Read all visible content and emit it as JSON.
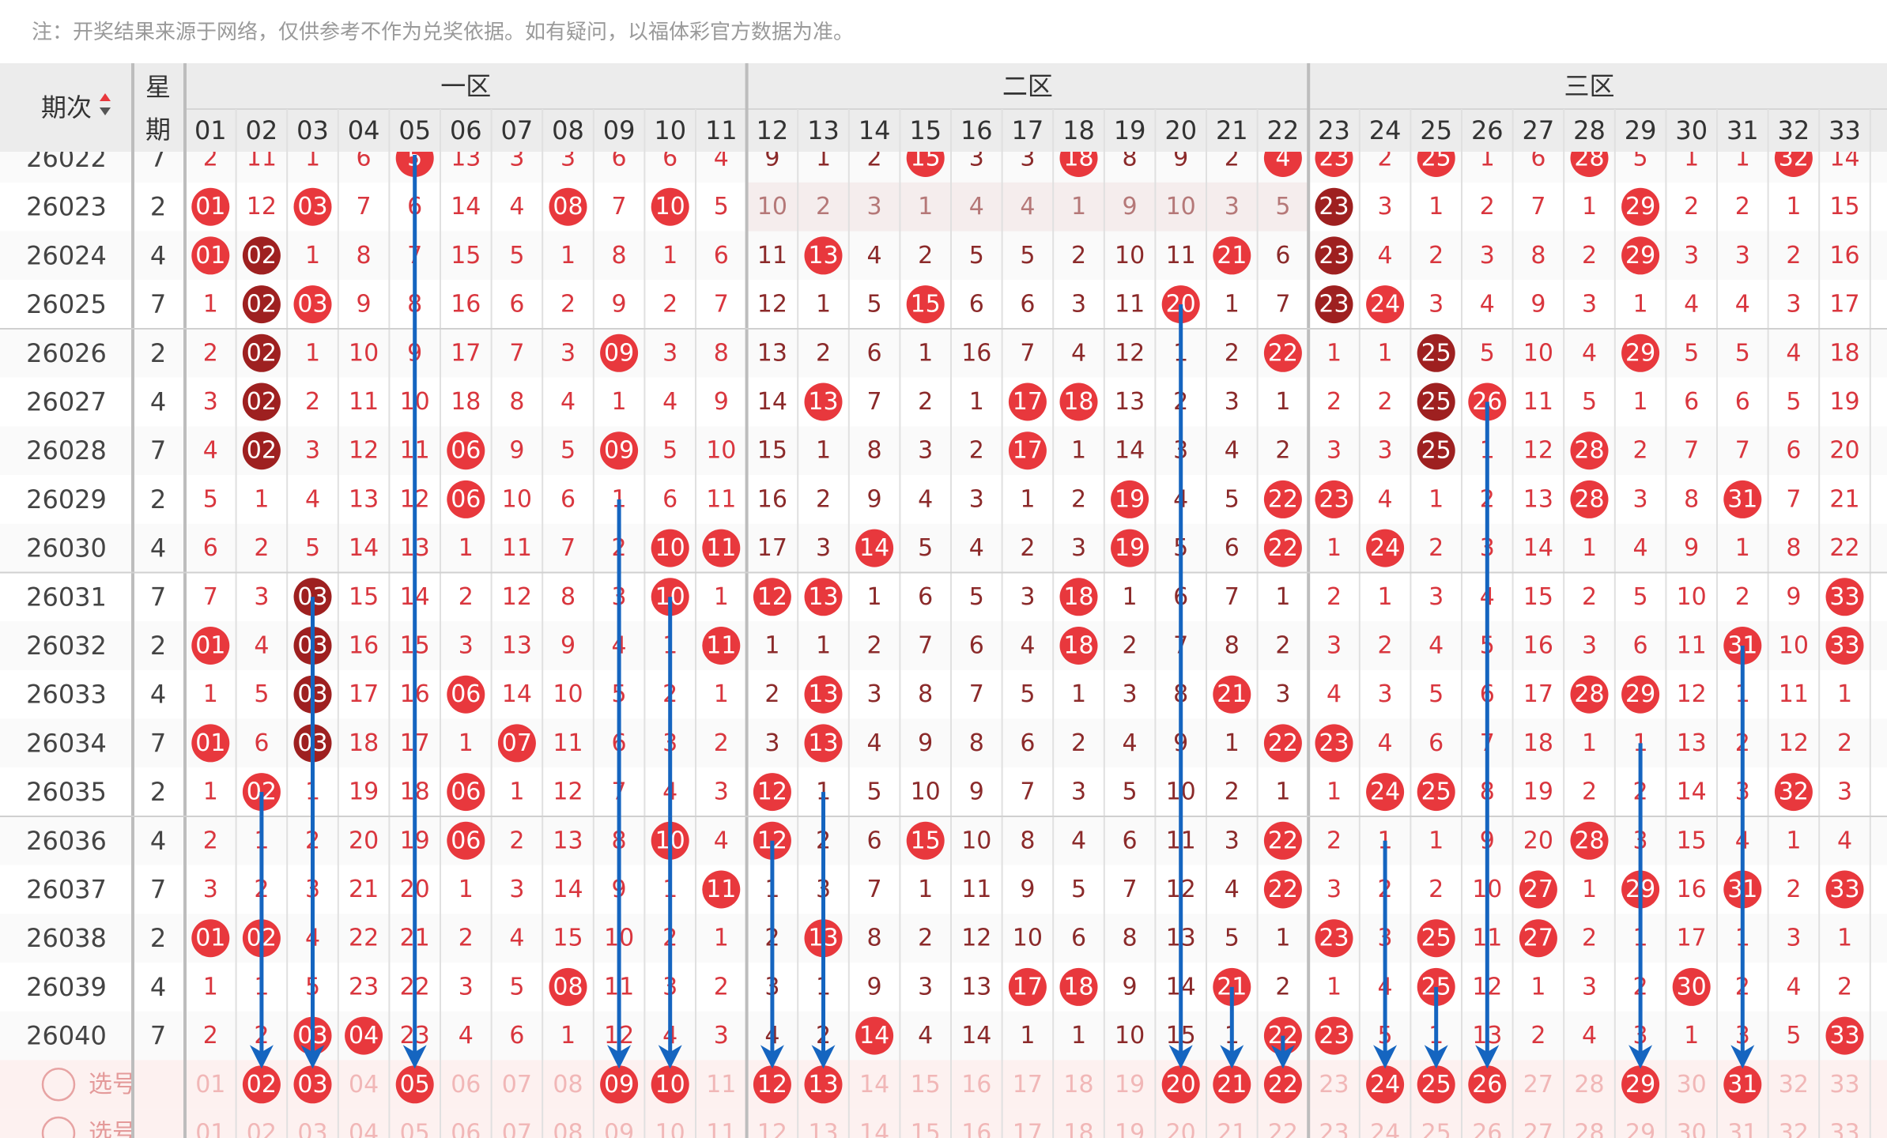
{
  "note": "注：开奖结果来源于网络，仅供参考不作为兑奖依据。如有疑问，以福体彩官方数据为准。",
  "header": {
    "period_label": "期次",
    "weekday_label": [
      "星",
      "期"
    ],
    "zones": [
      "一区",
      "二区",
      "三区"
    ],
    "columns": [
      "01",
      "02",
      "03",
      "04",
      "05",
      "06",
      "07",
      "08",
      "09",
      "10",
      "11",
      "12",
      "13",
      "14",
      "15",
      "16",
      "17",
      "18",
      "19",
      "20",
      "21",
      "22",
      "23",
      "24",
      "25",
      "26",
      "27",
      "28",
      "29",
      "30",
      "31",
      "32",
      "33"
    ]
  },
  "rows": [
    {
      "period": "26022",
      "weekday": "7",
      "cells": [
        "2",
        "11",
        "1",
        "6",
        "5",
        "13",
        "3",
        "3",
        "6",
        "6",
        "4",
        "9",
        "1",
        "2",
        "15",
        "3",
        "3",
        "18",
        "8",
        "9",
        "2",
        "4",
        "23",
        "2",
        "25",
        "1",
        "6",
        "28",
        "5",
        "1",
        "1",
        "32",
        "14"
      ]
    },
    {
      "period": "26023",
      "weekday": "2",
      "cells": [
        "01",
        "12",
        "03",
        "7",
        "6",
        "14",
        "4",
        "08",
        "7",
        "10",
        "5",
        "10",
        "2",
        "3",
        "1",
        "4",
        "4",
        "1",
        "9",
        "10",
        "3",
        "5",
        "23",
        "3",
        "1",
        "2",
        "7",
        "1",
        "29",
        "2",
        "2",
        "1",
        "15"
      ]
    },
    {
      "period": "26024",
      "weekday": "4",
      "cells": [
        "01",
        "02",
        "1",
        "8",
        "7",
        "15",
        "5",
        "1",
        "8",
        "1",
        "6",
        "11",
        "13",
        "4",
        "2",
        "5",
        "5",
        "2",
        "10",
        "11",
        "21",
        "6",
        "23",
        "4",
        "2",
        "3",
        "8",
        "2",
        "29",
        "3",
        "3",
        "2",
        "16"
      ]
    },
    {
      "period": "26025",
      "weekday": "7",
      "cells": [
        "1",
        "02",
        "03",
        "9",
        "8",
        "16",
        "6",
        "2",
        "9",
        "2",
        "7",
        "12",
        "1",
        "5",
        "15",
        "6",
        "6",
        "3",
        "11",
        "20",
        "1",
        "7",
        "23",
        "24",
        "3",
        "4",
        "9",
        "3",
        "1",
        "4",
        "4",
        "3",
        "17"
      ]
    },
    {
      "period": "26026",
      "weekday": "2",
      "cells": [
        "2",
        "02",
        "1",
        "10",
        "9",
        "17",
        "7",
        "3",
        "09",
        "3",
        "8",
        "13",
        "2",
        "6",
        "1",
        "16",
        "7",
        "4",
        "12",
        "1",
        "2",
        "22",
        "1",
        "1",
        "25",
        "5",
        "10",
        "4",
        "29",
        "5",
        "5",
        "4",
        "18"
      ]
    },
    {
      "period": "26027",
      "weekday": "4",
      "cells": [
        "3",
        "02",
        "2",
        "11",
        "10",
        "18",
        "8",
        "4",
        "1",
        "4",
        "9",
        "14",
        "13",
        "7",
        "2",
        "1",
        "17",
        "18",
        "13",
        "2",
        "3",
        "1",
        "2",
        "2",
        "25",
        "26",
        "11",
        "5",
        "1",
        "6",
        "6",
        "5",
        "19"
      ]
    },
    {
      "period": "26028",
      "weekday": "7",
      "cells": [
        "4",
        "02",
        "3",
        "12",
        "11",
        "06",
        "9",
        "5",
        "09",
        "5",
        "10",
        "15",
        "1",
        "8",
        "3",
        "2",
        "17",
        "1",
        "14",
        "3",
        "4",
        "2",
        "3",
        "3",
        "25",
        "1",
        "12",
        "28",
        "2",
        "7",
        "7",
        "6",
        "20"
      ]
    },
    {
      "period": "26029",
      "weekday": "2",
      "cells": [
        "5",
        "1",
        "4",
        "13",
        "12",
        "06",
        "10",
        "6",
        "1",
        "6",
        "11",
        "16",
        "2",
        "9",
        "4",
        "3",
        "1",
        "2",
        "19",
        "4",
        "5",
        "22",
        "23",
        "4",
        "1",
        "2",
        "13",
        "28",
        "3",
        "8",
        "31",
        "7",
        "21"
      ]
    },
    {
      "period": "26030",
      "weekday": "4",
      "cells": [
        "6",
        "2",
        "5",
        "14",
        "13",
        "1",
        "11",
        "7",
        "2",
        "10",
        "11",
        "17",
        "3",
        "14",
        "5",
        "4",
        "2",
        "3",
        "19",
        "5",
        "6",
        "22",
        "1",
        "24",
        "2",
        "3",
        "14",
        "1",
        "4",
        "9",
        "1",
        "8",
        "22"
      ]
    },
    {
      "period": "26031",
      "weekday": "7",
      "cells": [
        "7",
        "3",
        "03",
        "15",
        "14",
        "2",
        "12",
        "8",
        "3",
        "10",
        "1",
        "12",
        "13",
        "1",
        "6",
        "5",
        "3",
        "18",
        "1",
        "6",
        "7",
        "1",
        "2",
        "1",
        "3",
        "4",
        "15",
        "2",
        "5",
        "10",
        "2",
        "9",
        "33"
      ]
    },
    {
      "period": "26032",
      "weekday": "2",
      "cells": [
        "01",
        "4",
        "03",
        "16",
        "15",
        "3",
        "13",
        "9",
        "4",
        "1",
        "11",
        "1",
        "1",
        "2",
        "7",
        "6",
        "4",
        "18",
        "2",
        "7",
        "8",
        "2",
        "3",
        "2",
        "4",
        "5",
        "16",
        "3",
        "6",
        "11",
        "31",
        "10",
        "33"
      ]
    },
    {
      "period": "26033",
      "weekday": "4",
      "cells": [
        "1",
        "5",
        "03",
        "17",
        "16",
        "06",
        "14",
        "10",
        "5",
        "2",
        "1",
        "2",
        "13",
        "3",
        "8",
        "7",
        "5",
        "1",
        "3",
        "8",
        "21",
        "3",
        "4",
        "3",
        "5",
        "6",
        "17",
        "28",
        "29",
        "12",
        "1",
        "11",
        "1"
      ]
    },
    {
      "period": "26034",
      "weekday": "7",
      "cells": [
        "01",
        "6",
        "03",
        "18",
        "17",
        "1",
        "07",
        "11",
        "6",
        "3",
        "2",
        "3",
        "13",
        "4",
        "9",
        "8",
        "6",
        "2",
        "4",
        "9",
        "1",
        "22",
        "23",
        "4",
        "6",
        "7",
        "18",
        "1",
        "1",
        "13",
        "2",
        "12",
        "2"
      ]
    },
    {
      "period": "26035",
      "weekday": "2",
      "cells": [
        "1",
        "02",
        "1",
        "19",
        "18",
        "06",
        "1",
        "12",
        "7",
        "4",
        "3",
        "12",
        "1",
        "5",
        "10",
        "9",
        "7",
        "3",
        "5",
        "10",
        "2",
        "1",
        "1",
        "24",
        "25",
        "8",
        "19",
        "2",
        "2",
        "14",
        "3",
        "32",
        "3"
      ]
    },
    {
      "period": "26036",
      "weekday": "4",
      "cells": [
        "2",
        "1",
        "2",
        "20",
        "19",
        "06",
        "2",
        "13",
        "8",
        "10",
        "4",
        "12",
        "2",
        "6",
        "15",
        "10",
        "8",
        "4",
        "6",
        "11",
        "3",
        "22",
        "2",
        "1",
        "1",
        "9",
        "20",
        "28",
        "3",
        "15",
        "4",
        "1",
        "4"
      ]
    },
    {
      "period": "26037",
      "weekday": "7",
      "cells": [
        "3",
        "2",
        "3",
        "21",
        "20",
        "1",
        "3",
        "14",
        "9",
        "1",
        "11",
        "1",
        "3",
        "7",
        "1",
        "11",
        "9",
        "5",
        "7",
        "12",
        "4",
        "22",
        "3",
        "2",
        "2",
        "10",
        "27",
        "1",
        "29",
        "16",
        "31",
        "2",
        "33"
      ]
    },
    {
      "period": "26038",
      "weekday": "2",
      "cells": [
        "01",
        "02",
        "4",
        "22",
        "21",
        "2",
        "4",
        "15",
        "10",
        "2",
        "1",
        "2",
        "13",
        "8",
        "2",
        "12",
        "10",
        "6",
        "8",
        "13",
        "5",
        "1",
        "23",
        "3",
        "25",
        "11",
        "27",
        "2",
        "1",
        "17",
        "1",
        "3",
        "1"
      ]
    },
    {
      "period": "26039",
      "weekday": "4",
      "cells": [
        "1",
        "1",
        "5",
        "23",
        "22",
        "3",
        "5",
        "08",
        "11",
        "3",
        "2",
        "3",
        "1",
        "9",
        "3",
        "13",
        "17",
        "18",
        "9",
        "14",
        "21",
        "2",
        "1",
        "4",
        "25",
        "12",
        "1",
        "3",
        "2",
        "30",
        "2",
        "4",
        "2"
      ]
    },
    {
      "period": "26040",
      "weekday": "7",
      "cells": [
        "2",
        "2",
        "03",
        "04",
        "23",
        "4",
        "6",
        "1",
        "12",
        "4",
        "3",
        "4",
        "2",
        "14",
        "4",
        "14",
        "1",
        "1",
        "10",
        "15",
        "1",
        "22",
        "23",
        "5",
        "1",
        "13",
        "2",
        "4",
        "3",
        "1",
        "3",
        "5",
        "33"
      ]
    }
  ],
  "reds": [
    [
      4,
      14,
      17,
      21,
      22,
      24,
      27,
      31
    ],
    [
      0,
      2,
      7,
      9,
      22,
      28
    ],
    [
      0,
      1,
      12,
      20,
      22,
      28
    ],
    [
      1,
      2,
      14,
      19,
      22,
      23
    ],
    [
      1,
      8,
      21,
      24,
      28
    ],
    [
      1,
      12,
      16,
      17,
      24,
      25
    ],
    [
      1,
      5,
      8,
      16,
      24,
      27
    ],
    [
      5,
      18,
      21,
      22,
      27,
      30
    ],
    [
      9,
      10,
      13,
      18,
      21,
      23
    ],
    [
      2,
      9,
      11,
      12,
      17,
      32
    ],
    [
      0,
      2,
      10,
      17,
      30,
      32
    ],
    [
      2,
      5,
      12,
      20,
      27,
      28
    ],
    [
      0,
      2,
      6,
      12,
      21,
      22
    ],
    [
      1,
      5,
      11,
      23,
      24,
      31
    ],
    [
      5,
      9,
      11,
      14,
      21,
      27
    ],
    [
      10,
      21,
      26,
      28,
      30,
      32
    ],
    [
      0,
      1,
      12,
      22,
      24,
      26
    ],
    [
      7,
      16,
      17,
      20,
      24,
      29
    ],
    [
      2,
      3,
      13,
      21,
      22,
      32
    ]
  ],
  "streaks": [
    {
      "row": 2,
      "col": 1
    },
    {
      "row": 3,
      "col": 1
    },
    {
      "row": 4,
      "col": 1
    },
    {
      "row": 5,
      "col": 1
    },
    {
      "row": 6,
      "col": 1
    },
    {
      "row": 9,
      "col": 2
    },
    {
      "row": 10,
      "col": 2
    },
    {
      "row": 11,
      "col": 2
    },
    {
      "row": 12,
      "col": 2
    },
    {
      "row": 1,
      "col": 22
    },
    {
      "row": 2,
      "col": 22
    },
    {
      "row": 3,
      "col": 22
    },
    {
      "row": 4,
      "col": 24
    },
    {
      "row": 5,
      "col": 24
    },
    {
      "row": 6,
      "col": 24
    }
  ],
  "select_rows": [
    {
      "label": "选号",
      "picked": {
        "1": "02",
        "2": "03",
        "4": "05",
        "8": "09",
        "9": "10",
        "11": "12",
        "12": "13",
        "19": "20",
        "20": "21",
        "21": "22",
        "23": "24",
        "24": "25",
        "25": "26",
        "28": "29",
        "30": "31"
      }
    },
    {
      "label": "选号",
      "picked": {}
    }
  ],
  "arrows": [
    {
      "col": 1,
      "from_row": 13
    },
    {
      "col": 2,
      "from_row": 9
    },
    {
      "col": 4,
      "from_row": 0
    },
    {
      "col": 8,
      "from_row": 7
    },
    {
      "col": 9,
      "from_row": 9
    },
    {
      "col": 11,
      "from_row": 14
    },
    {
      "col": 12,
      "from_row": 13
    },
    {
      "col": 19,
      "from_row": 3
    },
    {
      "col": 20,
      "from_row": 17
    },
    {
      "col": 21,
      "from_row": 18
    },
    {
      "col": 23,
      "from_row": 14
    },
    {
      "col": 24,
      "from_row": 17
    },
    {
      "col": 25,
      "from_row": 5
    },
    {
      "col": 28,
      "from_row": 12
    },
    {
      "col": 30,
      "from_row": 10
    }
  ],
  "colors": {
    "red": "#e8383d",
    "dark_red": "#9e2020",
    "miss_red": "#d9363e",
    "miss_dark": "#8b2a2a",
    "arrow": "#1565c0",
    "header_bg": "#ececec",
    "select_bg": "#fdf1f0"
  }
}
